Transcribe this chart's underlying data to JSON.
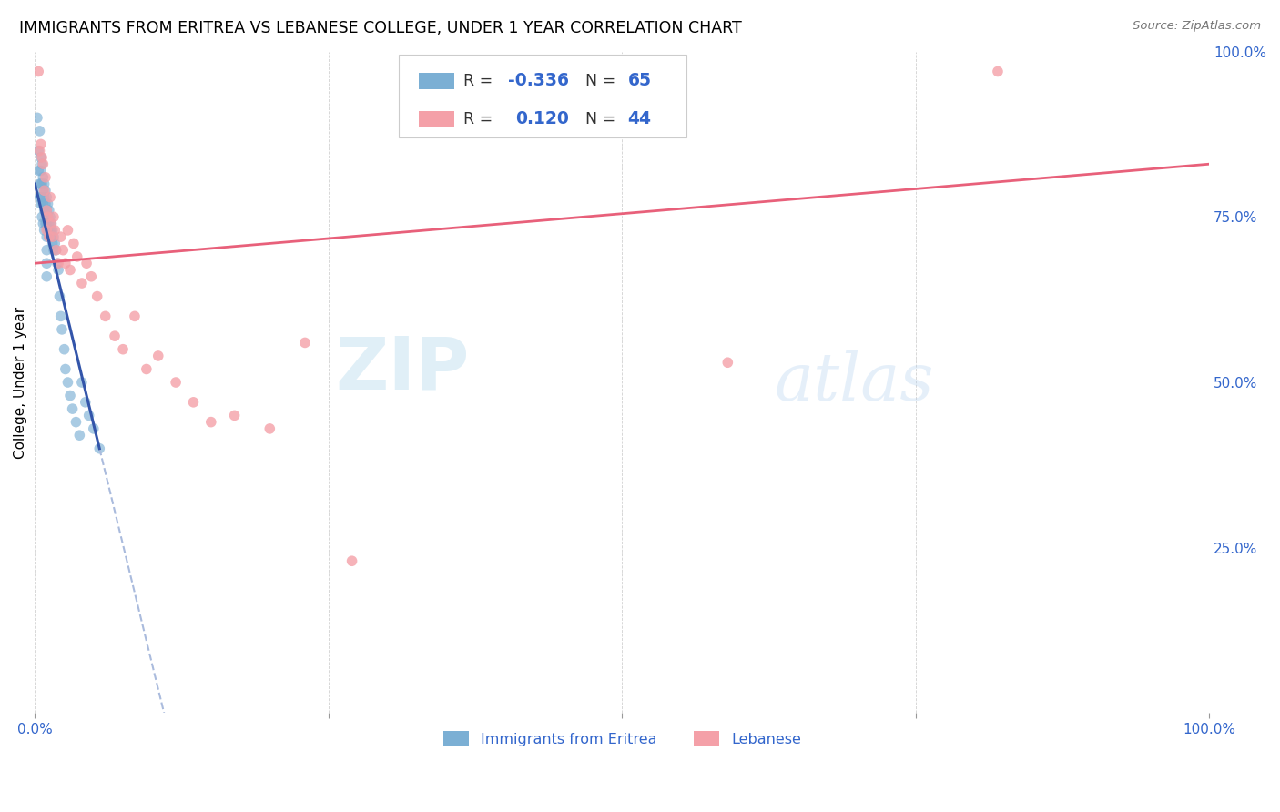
{
  "title": "IMMIGRANTS FROM ERITREA VS LEBANESE COLLEGE, UNDER 1 YEAR CORRELATION CHART",
  "source": "Source: ZipAtlas.com",
  "ylabel": "College, Under 1 year",
  "xlim": [
    0,
    1
  ],
  "ylim": [
    0,
    1
  ],
  "color_eritrea": "#7BAFD4",
  "color_lebanese": "#F4A0A8",
  "color_trend_eritrea": "#3355AA",
  "color_trend_lebanese": "#E8607A",
  "color_trend_dashed": "#AABBDD",
  "watermark_zip": "ZIP",
  "watermark_atlas": "atlas",
  "r1": "-0.336",
  "n1": "65",
  "r2": "0.120",
  "n2": "44",
  "eritrea_x": [
    0.002,
    0.003,
    0.003,
    0.004,
    0.004,
    0.004,
    0.005,
    0.005,
    0.005,
    0.005,
    0.006,
    0.006,
    0.006,
    0.006,
    0.007,
    0.007,
    0.007,
    0.007,
    0.008,
    0.008,
    0.008,
    0.008,
    0.009,
    0.009,
    0.009,
    0.01,
    0.01,
    0.01,
    0.01,
    0.01,
    0.01,
    0.01,
    0.011,
    0.011,
    0.011,
    0.012,
    0.012,
    0.012,
    0.013,
    0.013,
    0.014,
    0.014,
    0.015,
    0.015,
    0.016,
    0.016,
    0.017,
    0.018,
    0.019,
    0.02,
    0.021,
    0.022,
    0.023,
    0.025,
    0.026,
    0.028,
    0.03,
    0.032,
    0.035,
    0.038,
    0.04,
    0.043,
    0.046,
    0.05,
    0.055
  ],
  "eritrea_y": [
    0.9,
    0.85,
    0.82,
    0.88,
    0.8,
    0.78,
    0.84,
    0.82,
    0.8,
    0.77,
    0.83,
    0.8,
    0.78,
    0.75,
    0.81,
    0.79,
    0.77,
    0.74,
    0.8,
    0.78,
    0.76,
    0.73,
    0.79,
    0.77,
    0.74,
    0.78,
    0.76,
    0.74,
    0.72,
    0.7,
    0.68,
    0.66,
    0.77,
    0.75,
    0.73,
    0.76,
    0.74,
    0.72,
    0.75,
    0.73,
    0.74,
    0.72,
    0.73,
    0.71,
    0.72,
    0.7,
    0.71,
    0.7,
    0.68,
    0.67,
    0.63,
    0.6,
    0.58,
    0.55,
    0.52,
    0.5,
    0.48,
    0.46,
    0.44,
    0.42,
    0.5,
    0.47,
    0.45,
    0.43,
    0.4
  ],
  "lebanese_x": [
    0.003,
    0.004,
    0.005,
    0.006,
    0.007,
    0.008,
    0.009,
    0.01,
    0.01,
    0.011,
    0.012,
    0.013,
    0.014,
    0.015,
    0.016,
    0.017,
    0.018,
    0.02,
    0.022,
    0.024,
    0.026,
    0.028,
    0.03,
    0.033,
    0.036,
    0.04,
    0.044,
    0.048,
    0.053,
    0.06,
    0.068,
    0.075,
    0.085,
    0.095,
    0.105,
    0.12,
    0.135,
    0.15,
    0.17,
    0.2,
    0.23,
    0.27,
    0.59,
    0.82
  ],
  "lebanese_y": [
    0.97,
    0.85,
    0.86,
    0.84,
    0.83,
    0.79,
    0.81,
    0.76,
    0.73,
    0.75,
    0.72,
    0.78,
    0.74,
    0.72,
    0.75,
    0.73,
    0.7,
    0.68,
    0.72,
    0.7,
    0.68,
    0.73,
    0.67,
    0.71,
    0.69,
    0.65,
    0.68,
    0.66,
    0.63,
    0.6,
    0.57,
    0.55,
    0.6,
    0.52,
    0.54,
    0.5,
    0.47,
    0.44,
    0.45,
    0.43,
    0.56,
    0.23,
    0.53,
    0.97
  ],
  "trend_eritrea_x0": 0.0,
  "trend_eritrea_y0": 0.8,
  "trend_eritrea_x1": 0.055,
  "trend_eritrea_y1": 0.4,
  "trend_lebanese_x0": 0.0,
  "trend_lebanese_y0": 0.68,
  "trend_lebanese_x1": 1.0,
  "trend_lebanese_y1": 0.83
}
